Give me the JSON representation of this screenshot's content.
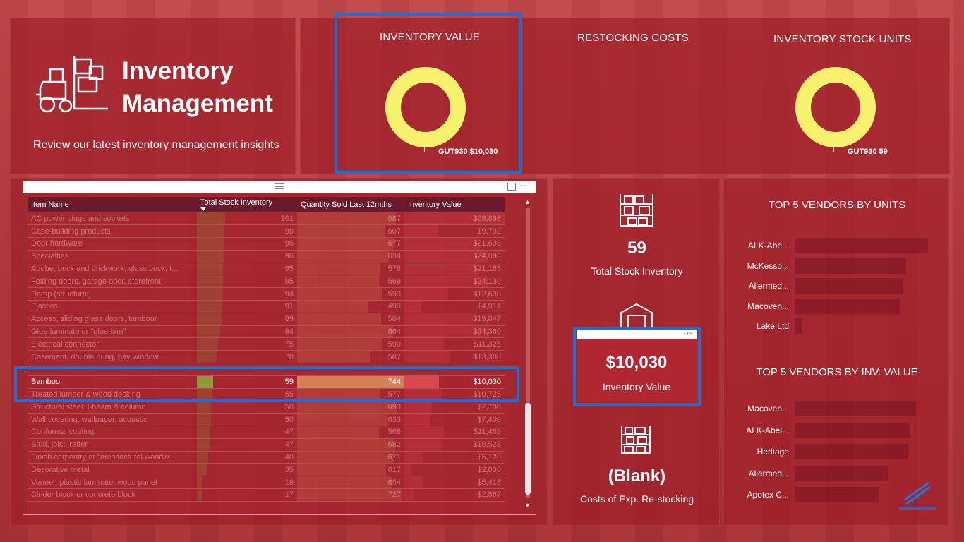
{
  "header": {
    "title_line1": "Inventory",
    "title_line2": "Management",
    "subtitle": "Review our latest inventory management insights"
  },
  "kpis": [
    {
      "title": "INVENTORY VALUE",
      "label": "GUT930 $10,030"
    },
    {
      "title": "RESTOCKING COSTS",
      "label": ""
    },
    {
      "title": "INVENTORY STOCK UNITS",
      "label": "GUT930 59"
    }
  ],
  "colors": {
    "donut": "#f7f26e",
    "highlight": "#1f6fd1",
    "bar_stock": "#8aa540",
    "bar_sold": "#d9895c",
    "bar_value": "#e04a52"
  },
  "table": {
    "columns": [
      "Item Name",
      "Total Stock Inventory",
      "Quantity Sold Last 12mths",
      "Inventory Value"
    ],
    "rows": [
      [
        "AC power plugs and sockets",
        "101",
        "687",
        "$28,886"
      ],
      [
        "Case-building products",
        "99",
        "607",
        "$9,702"
      ],
      [
        "Door hardware",
        "96",
        "677",
        "$21,696"
      ],
      [
        "Specialties",
        "96",
        "634",
        "$24,096"
      ],
      [
        "Adobe, brick and brickwork, glass brick, t...",
        "95",
        "578",
        "$21,185"
      ],
      [
        "Folding doors, garage door, storefront",
        "95",
        "569",
        "$24,130"
      ],
      [
        "Damp (structural)",
        "94",
        "593",
        "$12,690"
      ],
      [
        "Plastics",
        "91",
        "490",
        "$4,914"
      ],
      [
        "Access, sliding glass doors, tambour",
        "89",
        "584",
        "$19,847"
      ],
      [
        "Glue-laminate or \"glue-lam\"",
        "84",
        "664",
        "$24,360"
      ],
      [
        "Electrical connector",
        "75",
        "590",
        "$11,325"
      ],
      [
        "Casement, double hung, bay window",
        "70",
        "507",
        "$13,300"
      ],
      [
        "",
        "",
        "",
        ""
      ],
      [
        "Bamboo",
        "59",
        "744",
        "$10,030"
      ],
      [
        "Treated lumber & wood decking",
        "55",
        "577",
        "$10,725"
      ],
      [
        "Structural steel: I-beam & column",
        "50",
        "693",
        "$7,700"
      ],
      [
        "Wall covering, wallpaper, acoustic",
        "50",
        "633",
        "$7,400"
      ],
      [
        "Conformal coating",
        "47",
        "568",
        "$11,468"
      ],
      [
        "Stud, joist, rafter",
        "47",
        "682",
        "$10,528"
      ],
      [
        "Finish carpentry or \"architectural woodw...",
        "40",
        "671",
        "$5,120"
      ],
      [
        "Decorative metal",
        "35",
        "617",
        "$2,030"
      ],
      [
        "Veneer, plastic laminate, wood panel",
        "19",
        "654",
        "$5,415"
      ],
      [
        "Cinder block or concrete block",
        "17",
        "727",
        "$2,567"
      ]
    ],
    "selected_index": 13,
    "stock_max": 101,
    "sold_max": 744,
    "value_max": 28886,
    "scroll_up": "▲",
    "scroll_down": "▼",
    "more": "···"
  },
  "cards": {
    "stock_value": "59",
    "stock_label": "Total Stock Inventory",
    "inv_value": "$10,030",
    "inv_label": "Inventory Value",
    "restock_value": "(Blank)",
    "restock_label": "Costs of Exp. Re-stocking",
    "more": "···"
  },
  "vendors_units": {
    "title": "TOP 5 VENDORS BY UNITS",
    "items": [
      {
        "name": "ALK-Abe...",
        "share": 0.9
      },
      {
        "name": "McKesso...",
        "share": 0.75
      },
      {
        "name": "Allermed...",
        "share": 0.73
      },
      {
        "name": "Macoven...",
        "share": 0.71
      },
      {
        "name": "Lake Ltd",
        "share": 0.05
      }
    ]
  },
  "vendors_value": {
    "title": "TOP 5 VENDORS BY INV. VALUE",
    "items": [
      {
        "name": "Macoven...",
        "share": 0.82
      },
      {
        "name": "ALK-Abel...",
        "share": 0.78
      },
      {
        "name": "Heritage",
        "share": 0.76
      },
      {
        "name": "Allermed...",
        "share": 0.63
      },
      {
        "name": "Apotex C...",
        "share": 0.57
      }
    ]
  }
}
